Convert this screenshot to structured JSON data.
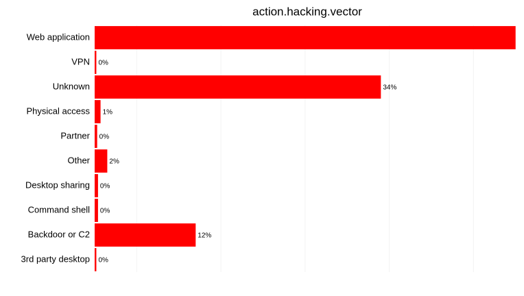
{
  "chart_data": {
    "type": "barh",
    "title": "action.hacking.vector",
    "categories": [
      "Web application",
      "VPN",
      "Unknown",
      "Physical access",
      "Partner",
      "Other",
      "Desktop sharing",
      "Command shell",
      "Backdoor or C2",
      "3rd party desktop"
    ],
    "values": [
      50,
      0.2,
      34,
      0.7,
      0.3,
      1.5,
      0.4,
      0.4,
      12,
      0.2
    ],
    "value_labels": [
      null,
      "0%",
      "34%",
      "1%",
      "0%",
      "2%",
      "0%",
      "0%",
      "12%",
      "0%"
    ],
    "color": "#ff0000",
    "xlim": [
      0,
      51
    ],
    "grid_lines": [
      5,
      15,
      25,
      35,
      45
    ]
  }
}
